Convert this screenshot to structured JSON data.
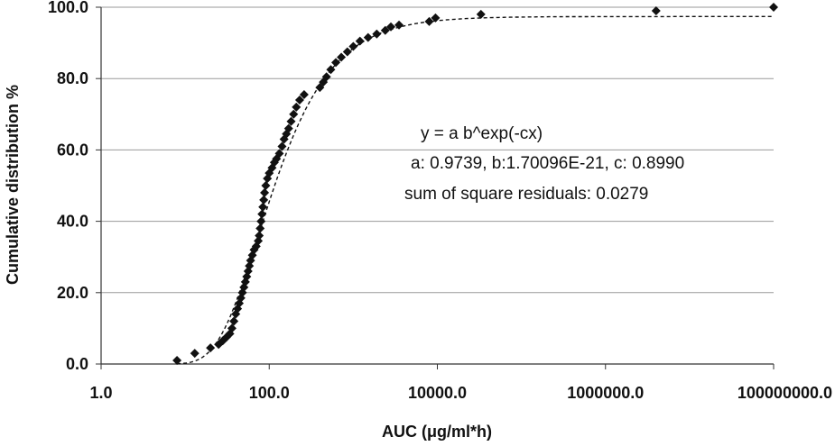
{
  "chart_data": {
    "type": "scatter",
    "title": "",
    "xlabel": "AUC  (μg/ml*h)",
    "ylabel": "Cumulative distribution %",
    "xscale": "log",
    "xlim": [
      1,
      100000000
    ],
    "ylim": [
      0,
      100
    ],
    "grid": "horizontal",
    "legend": "none",
    "x_ticks": [
      1,
      100,
      10000,
      1000000,
      100000000
    ],
    "x_tick_labels": [
      "1.0",
      "100.0",
      "10000.0",
      "1000000.0",
      "100000000.0"
    ],
    "y_ticks": [
      0,
      20,
      40,
      60,
      80,
      100
    ],
    "y_tick_labels": [
      "0.0",
      "20.0",
      "40.0",
      "60.0",
      "80.0",
      "100.0"
    ],
    "marker": "diamond",
    "marker_color": "#111111",
    "fit_line_color": "#111111",
    "fit_params": {
      "a": 0.9739,
      "b": 1.70096e-21,
      "c": 0.899
    },
    "annotations": [
      "y = a b^exp(-cx)",
      "a: 0.9739, b:1.70096E-21, c: 0.8990",
      "sum of square residuals: 0.0279"
    ],
    "points": [
      {
        "x": 8,
        "y": 1.0
      },
      {
        "x": 13,
        "y": 3.0
      },
      {
        "x": 20,
        "y": 4.5
      },
      {
        "x": 25,
        "y": 5.5
      },
      {
        "x": 28,
        "y": 6.5
      },
      {
        "x": 31,
        "y": 7.5
      },
      {
        "x": 34,
        "y": 8.5
      },
      {
        "x": 36,
        "y": 10.0
      },
      {
        "x": 38,
        "y": 12.0
      },
      {
        "x": 40,
        "y": 14.0
      },
      {
        "x": 42,
        "y": 15.5
      },
      {
        "x": 44,
        "y": 17.0
      },
      {
        "x": 46,
        "y": 18.5
      },
      {
        "x": 48,
        "y": 20.0
      },
      {
        "x": 50,
        "y": 21.5
      },
      {
        "x": 52,
        "y": 23.0
      },
      {
        "x": 54,
        "y": 24.5
      },
      {
        "x": 56,
        "y": 26.0
      },
      {
        "x": 58,
        "y": 27.5
      },
      {
        "x": 60,
        "y": 29.0
      },
      {
        "x": 63,
        "y": 30.5
      },
      {
        "x": 66,
        "y": 32.0
      },
      {
        "x": 70,
        "y": 33.0
      },
      {
        "x": 74,
        "y": 34.5
      },
      {
        "x": 76,
        "y": 36.0
      },
      {
        "x": 78,
        "y": 38.0
      },
      {
        "x": 80,
        "y": 40.0
      },
      {
        "x": 82,
        "y": 42.0
      },
      {
        "x": 84,
        "y": 44.0
      },
      {
        "x": 86,
        "y": 46.0
      },
      {
        "x": 88,
        "y": 48.0
      },
      {
        "x": 91,
        "y": 50.0
      },
      {
        "x": 95,
        "y": 52.0
      },
      {
        "x": 100,
        "y": 53.5
      },
      {
        "x": 108,
        "y": 55.0
      },
      {
        "x": 115,
        "y": 56.5
      },
      {
        "x": 122,
        "y": 57.5
      },
      {
        "x": 132,
        "y": 59.0
      },
      {
        "x": 142,
        "y": 61.0
      },
      {
        "x": 150,
        "y": 63.0
      },
      {
        "x": 160,
        "y": 64.5
      },
      {
        "x": 170,
        "y": 66.0
      },
      {
        "x": 182,
        "y": 68.0
      },
      {
        "x": 195,
        "y": 70.0
      },
      {
        "x": 210,
        "y": 72.0
      },
      {
        "x": 230,
        "y": 74.0
      },
      {
        "x": 260,
        "y": 75.5
      },
      {
        "x": 400,
        "y": 77.5
      },
      {
        "x": 440,
        "y": 79.0
      },
      {
        "x": 480,
        "y": 80.5
      },
      {
        "x": 540,
        "y": 82.5
      },
      {
        "x": 620,
        "y": 84.5
      },
      {
        "x": 720,
        "y": 86.0
      },
      {
        "x": 850,
        "y": 87.5
      },
      {
        "x": 1000,
        "y": 89.0
      },
      {
        "x": 1200,
        "y": 90.5
      },
      {
        "x": 1500,
        "y": 91.5
      },
      {
        "x": 1900,
        "y": 92.5
      },
      {
        "x": 2400,
        "y": 93.5
      },
      {
        "x": 2800,
        "y": 94.5
      },
      {
        "x": 3500,
        "y": 95.0
      },
      {
        "x": 8000,
        "y": 96.0
      },
      {
        "x": 9500,
        "y": 97.0
      },
      {
        "x": 33000,
        "y": 98.0
      },
      {
        "x": 4000000,
        "y": 99.0
      },
      {
        "x": 100000000,
        "y": 100.0
      }
    ]
  }
}
